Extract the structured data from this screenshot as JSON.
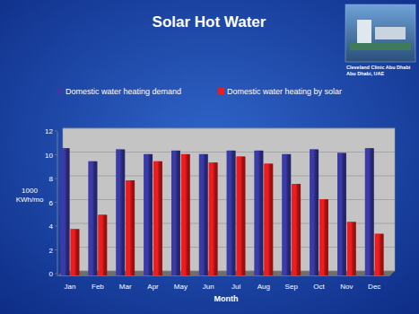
{
  "chart_data": {
    "type": "bar",
    "title": "Solar Hot Water",
    "annotations": [
      "Cleveland Clinic Abu Dhabi",
      "Abu Dhabi, UAE"
    ],
    "xlabel": "Month",
    "ylabel": "1000 KWh/mo",
    "categories": [
      "Jan",
      "Feb",
      "Mar",
      "Apr",
      "May",
      "Jun",
      "Jul",
      "Aug",
      "Sep",
      "Oct",
      "Nov",
      "Dec"
    ],
    "series": [
      {
        "name": "Domestic water heating demand",
        "color": "#3a3aa8",
        "values": [
          10.7,
          9.6,
          10.6,
          10.2,
          10.5,
          10.2,
          10.5,
          10.5,
          10.2,
          10.6,
          10.3,
          10.7
        ]
      },
      {
        "name": "Domestic water heating by solar",
        "color": "#ee1c1c",
        "values": [
          3.9,
          5.1,
          8.0,
          9.6,
          10.2,
          9.5,
          10.0,
          9.4,
          7.7,
          6.4,
          4.5,
          3.5
        ]
      }
    ],
    "ylim": [
      0,
      12
    ],
    "yticks": [
      0,
      2,
      4,
      6,
      8,
      10,
      12
    ],
    "grid": true,
    "legend": "top"
  }
}
